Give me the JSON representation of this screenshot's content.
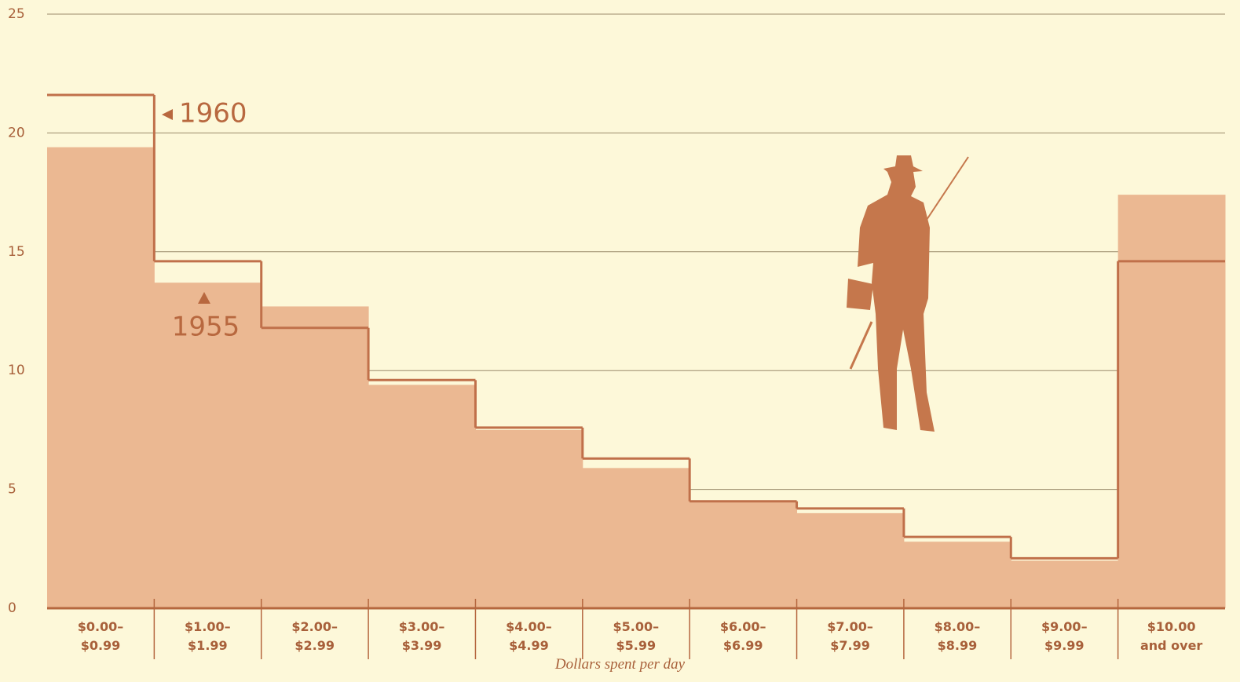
{
  "chart_data": {
    "type": "bar",
    "x_label": "Dollars spent per day",
    "categories": [
      "$0.00–\n$0.99",
      "$1.00–\n$1.99",
      "$2.00–\n$2.99",
      "$3.00–\n$3.99",
      "$4.00–\n$4.99",
      "$5.00–\n$5.99",
      "$6.00–\n$6.99",
      "$7.00–\n$7.99",
      "$8.00–\n$8.99",
      "$9.00–\n$9.99",
      "$10.00\nand over"
    ],
    "series": [
      {
        "name": "1955",
        "style": "area",
        "color": "#ebb892",
        "values": [
          19.4,
          13.7,
          12.7,
          9.4,
          7.5,
          5.9,
          4.5,
          4.0,
          2.8,
          2.0,
          17.4
        ]
      },
      {
        "name": "1960",
        "style": "step",
        "color": "#c0704a",
        "values": [
          21.6,
          14.6,
          11.8,
          9.6,
          7.6,
          6.3,
          4.5,
          4.2,
          3.0,
          2.1,
          14.6
        ]
      }
    ],
    "ylim": [
      0,
      25
    ],
    "yticks": [
      0,
      5,
      10,
      15,
      20,
      25
    ],
    "grid": true
  }
}
